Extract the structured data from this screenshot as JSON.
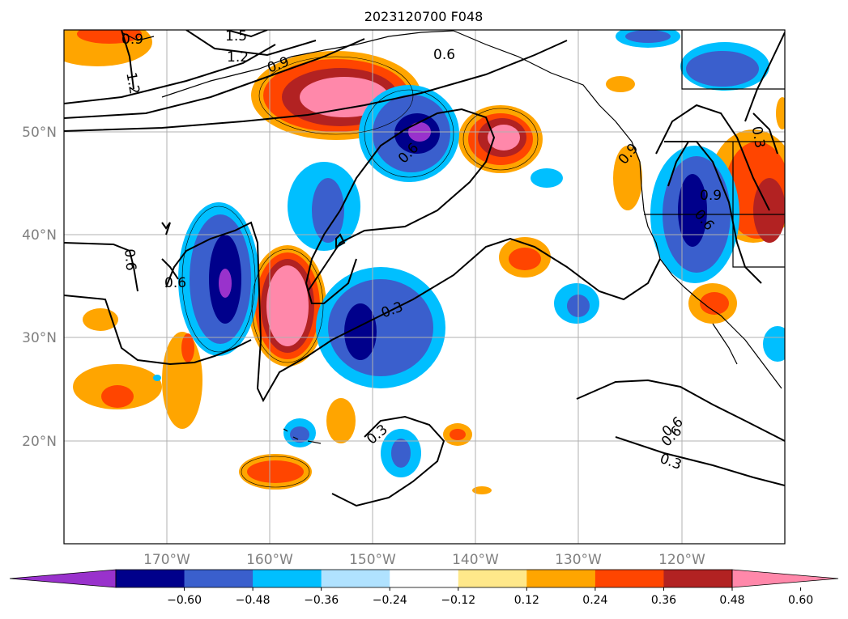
{
  "title": "2023120700 F048",
  "map": {
    "lat_labels": [
      "50°N",
      "40°N",
      "30°N",
      "20°N"
    ],
    "lon_labels": [
      "170°W",
      "160°W",
      "150°W",
      "140°W",
      "130°W",
      "120°W"
    ],
    "contour_labels": [
      "0.9",
      "1.5",
      "1.2",
      "0.9",
      "1.2",
      "0.6",
      "0.6",
      "0.9",
      "0.3",
      "0.6",
      "0.9",
      "0.6",
      "0.6",
      "0.6",
      "0.3",
      "0.3",
      "0.6",
      "0.3"
    ]
  },
  "colorbar": {
    "ticks": [
      "−0.60",
      "−0.48",
      "−0.36",
      "−0.24",
      "−0.12",
      "0.12",
      "0.24",
      "0.36",
      "0.48",
      "0.60"
    ],
    "colors": [
      "#9932cc",
      "#00008b",
      "#3a5fcd",
      "#00bfff",
      "#b0e2ff",
      "#ffffff",
      "#ffe88a",
      "#ffa500",
      "#ff4500",
      "#b22222",
      "#ff88aa"
    ]
  }
}
